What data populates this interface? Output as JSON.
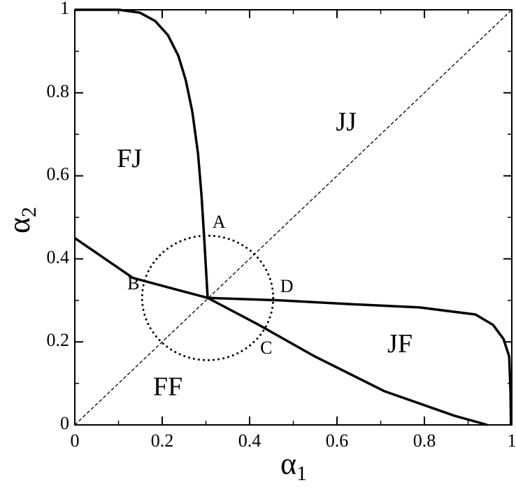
{
  "chart_data": {
    "type": "line",
    "x_label": {
      "symbol": "α",
      "subscript": "1"
    },
    "y_label": {
      "symbol": "α",
      "subscript": "2"
    },
    "xlim": [
      0,
      1
    ],
    "ylim": [
      0,
      1
    ],
    "xticks": [
      0,
      0.2,
      0.4,
      0.6,
      0.8,
      1
    ],
    "yticks": [
      0,
      0.2,
      0.4,
      0.6,
      0.8,
      1
    ],
    "minor_xticks": [
      0.1,
      0.3,
      0.5,
      0.7,
      0.9
    ],
    "minor_yticks": [
      0.1,
      0.3,
      0.5,
      0.7,
      0.9
    ],
    "series": [
      {
        "color": "#000000",
        "style": "solid",
        "x": [
          0,
          0.101,
          0.149,
          0.184,
          0.213,
          0.237,
          0.254,
          0.269,
          0.282,
          0.29,
          0.296,
          0.304
        ],
        "values": [
          1,
          1,
          0.993,
          0.973,
          0.939,
          0.889,
          0.83,
          0.754,
          0.653,
          0.552,
          0.451,
          0.306
        ]
      },
      {
        "color": "#000000",
        "style": "solid",
        "x": [
          0,
          0.133,
          0.304,
          0.421,
          0.549,
          0.709,
          0.869,
          0.944
        ],
        "values": [
          0.45,
          0.354,
          0.306,
          0.241,
          0.165,
          0.081,
          0.022,
          0
        ]
      },
      {
        "color": "#000000",
        "style": "solid",
        "x": [
          0.304,
          0.469,
          0.629,
          0.789,
          0.917,
          0.957,
          0.981,
          0.994,
          0.997,
          0.998
        ],
        "values": [
          0.306,
          0.3,
          0.291,
          0.283,
          0.266,
          0.241,
          0.207,
          0.165,
          0.081,
          0
        ]
      },
      {
        "color": "#000000",
        "style": "dashed",
        "x": [
          0,
          1
        ],
        "values": [
          0,
          1
        ]
      }
    ],
    "circle": {
      "cx": 0.304,
      "cy": 0.306,
      "r": 0.15,
      "style": "dotted"
    },
    "annotations": [
      {
        "text": "FJ",
        "x": 0.125,
        "y": 0.636,
        "size": "large"
      },
      {
        "text": "JJ",
        "x": 0.621,
        "y": 0.724,
        "size": "large"
      },
      {
        "text": "JF",
        "x": 0.744,
        "y": 0.19,
        "size": "large"
      },
      {
        "text": "FF",
        "x": 0.213,
        "y": 0.086,
        "size": "large"
      },
      {
        "text": "A",
        "x": 0.33,
        "y": 0.485,
        "size": "small"
      },
      {
        "text": "B",
        "x": 0.134,
        "y": 0.337,
        "size": "small"
      },
      {
        "text": "C",
        "x": 0.438,
        "y": 0.182,
        "size": "small"
      },
      {
        "text": "D",
        "x": 0.485,
        "y": 0.33,
        "size": "small"
      }
    ]
  }
}
